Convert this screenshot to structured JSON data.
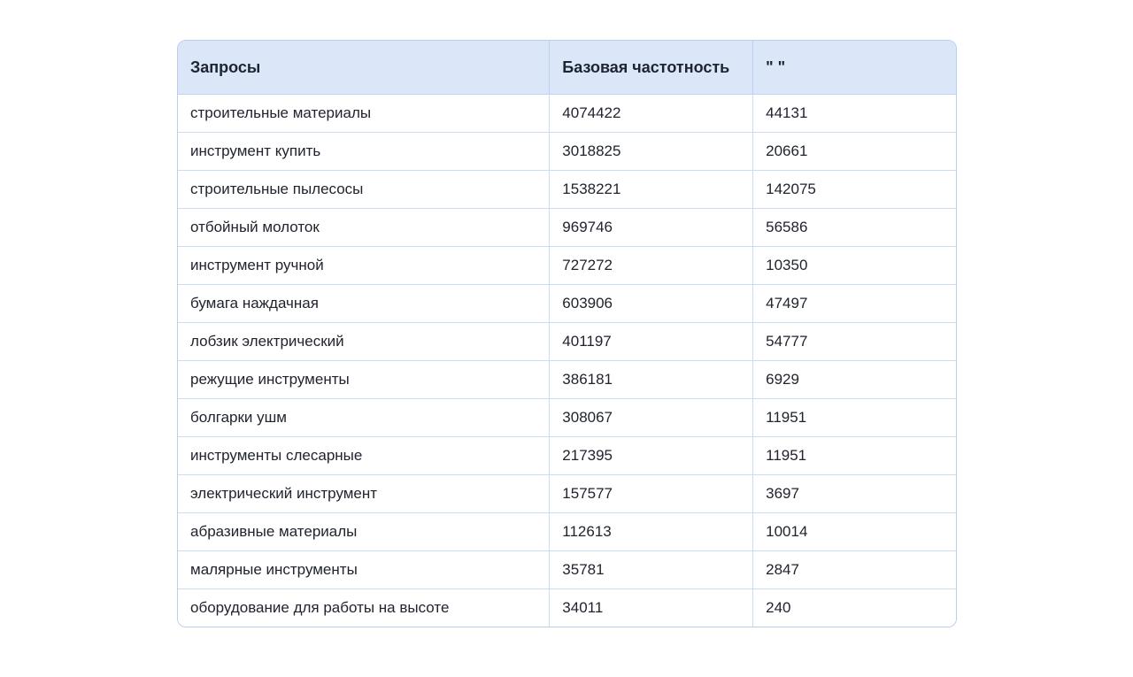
{
  "page": {
    "background": "#ffffff"
  },
  "colors": {
    "header_bg": "#dbe7f8",
    "outer_border": "#b9cfec",
    "row_border": "#ccdcf2",
    "text": "#20242e"
  },
  "chart_data": {
    "type": "table",
    "title": "",
    "legend_position": "none",
    "grid": true,
    "columns": [
      "Запросы",
      "Базовая частотность",
      "\" \""
    ],
    "rows": [
      [
        "строительные материалы",
        4074422,
        44131
      ],
      [
        "инструмент купить",
        3018825,
        20661
      ],
      [
        "строительные пылесосы",
        1538221,
        142075
      ],
      [
        "отбойный молоток",
        969746,
        56586
      ],
      [
        "инструмент ручной",
        727272,
        10350
      ],
      [
        "бумага наждачная",
        603906,
        47497
      ],
      [
        "лобзик электрический",
        401197,
        54777
      ],
      [
        "режущие инструменты",
        386181,
        6929
      ],
      [
        "болгарки ушм",
        308067,
        11951
      ],
      [
        "инструменты слесарные",
        217395,
        11951
      ],
      [
        "электрический инструмент",
        157577,
        3697
      ],
      [
        "абразивные материалы",
        112613,
        10014
      ],
      [
        "малярные инструменты",
        35781,
        2847
      ],
      [
        "оборудование для работы на высоте",
        34011,
        240
      ]
    ]
  }
}
